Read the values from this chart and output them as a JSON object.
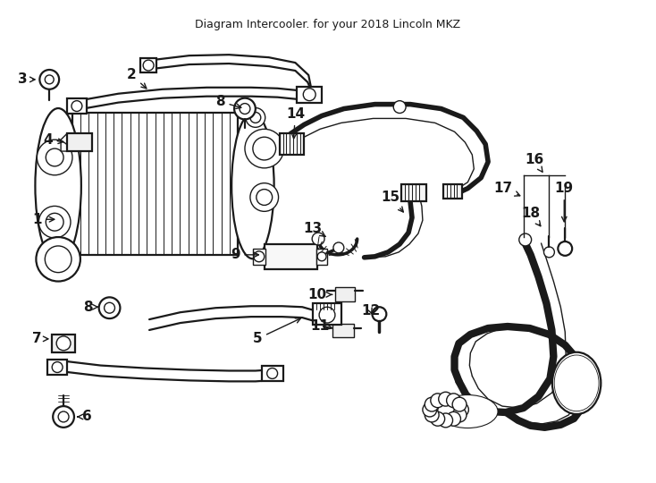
{
  "title": "Diagram Intercooler. for your 2018 Lincoln MKZ",
  "bg_color": "#ffffff",
  "line_color": "#1a1a1a",
  "fig_width": 7.34,
  "fig_height": 5.4,
  "dpi": 100
}
